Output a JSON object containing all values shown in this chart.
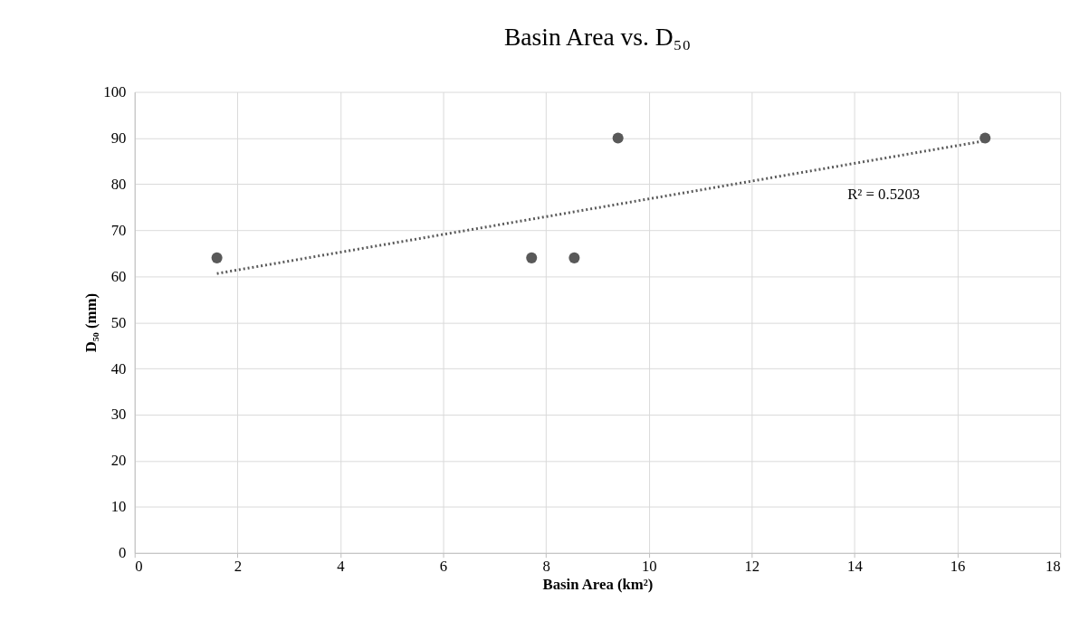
{
  "chart_data": {
    "type": "scatter",
    "title": "Basin Area vs. D₅₀",
    "xlabel": "Basin Area (km²)",
    "ylabel": "D₅₀ (mm)",
    "series": [
      {
        "color": "#595959",
        "x": [
          1.6,
          7.72,
          8.55,
          9.4,
          16.54
        ],
        "values": [
          64,
          64,
          64,
          90,
          90
        ]
      },
      {
        "type": "line",
        "color": "#595959",
        "line_style": "dotted",
        "marker": "none",
        "x": [
          1.6,
          16.54
        ],
        "values": [
          60.6,
          89.4
        ]
      }
    ],
    "annotations": [
      "R² = 0.5203"
    ],
    "xlim": [
      0,
      18
    ],
    "xticks": [
      0,
      2,
      4,
      6,
      8,
      10,
      12,
      14,
      16,
      18
    ],
    "ylim": [
      0,
      100
    ],
    "yticks": [
      0,
      10,
      20,
      30,
      40,
      50,
      60,
      70,
      80,
      90,
      100
    ],
    "grid": true,
    "marker": "circle"
  }
}
